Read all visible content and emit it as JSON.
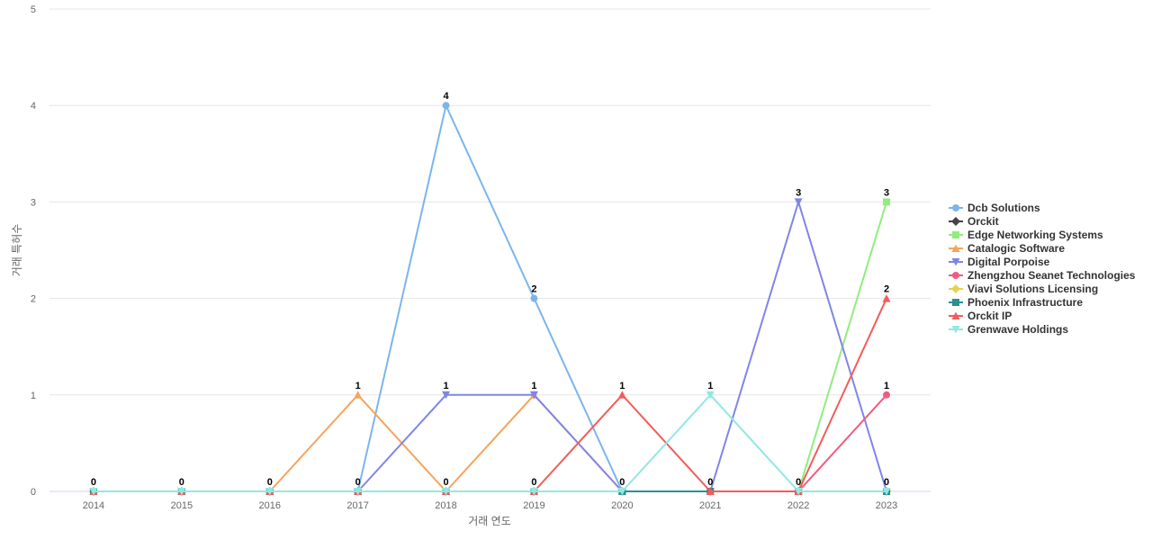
{
  "chart_data": {
    "type": "line",
    "title": "",
    "xlabel": "거래 연도",
    "ylabel": "거래 특허수",
    "ylim": [
      0,
      5
    ],
    "yticks": [
      0,
      1,
      2,
      3,
      4,
      5
    ],
    "grid": true,
    "legend": "right",
    "categories": [
      "2014",
      "2015",
      "2016",
      "2017",
      "2018",
      "2019",
      "2020",
      "2021",
      "2022",
      "2023"
    ],
    "series": [
      {
        "name": "Dcb Solutions",
        "color": "#7cb5ec",
        "marker": "circle",
        "values": [
          0,
          0,
          0,
          0,
          4,
          2,
          0,
          0,
          0,
          0
        ]
      },
      {
        "name": "Orckit",
        "color": "#434348",
        "marker": "diamond",
        "values": [
          0,
          0,
          0,
          0,
          0,
          0,
          0,
          0,
          0,
          0
        ]
      },
      {
        "name": "Edge Networking Systems",
        "color": "#90ed7d",
        "marker": "square",
        "values": [
          0,
          0,
          0,
          0,
          0,
          0,
          0,
          0,
          0,
          3
        ]
      },
      {
        "name": "Catalogic Software",
        "color": "#f7a35c",
        "marker": "triangle",
        "values": [
          0,
          0,
          0,
          1,
          0,
          1,
          0,
          0,
          0,
          0
        ]
      },
      {
        "name": "Digital Porpoise",
        "color": "#8085e9",
        "marker": "triangle-down",
        "values": [
          0,
          0,
          0,
          0,
          1,
          1,
          0,
          0,
          3,
          0
        ]
      },
      {
        "name": "Zhengzhou Seanet Technologies",
        "color": "#f15c80",
        "marker": "circle",
        "values": [
          0,
          0,
          0,
          0,
          0,
          0,
          0,
          0,
          0,
          1
        ]
      },
      {
        "name": "Viavi Solutions Licensing",
        "color": "#e4d354",
        "marker": "diamond",
        "values": [
          0,
          0,
          0,
          0,
          0,
          0,
          0,
          0,
          0,
          0
        ]
      },
      {
        "name": "Phoenix Infrastructure",
        "color": "#2b908f",
        "marker": "square",
        "values": [
          0,
          0,
          0,
          0,
          0,
          0,
          0,
          0,
          0,
          0
        ]
      },
      {
        "name": "Orckit IP",
        "color": "#f45b5b",
        "marker": "triangle",
        "values": [
          0,
          0,
          0,
          0,
          0,
          0,
          1,
          0,
          0,
          2
        ]
      },
      {
        "name": "Grenwave Holdings",
        "color": "#91e8e1",
        "marker": "triangle-down",
        "values": [
          0,
          0,
          0,
          0,
          0,
          0,
          0,
          1,
          0,
          0
        ]
      }
    ],
    "data_labels": [
      {
        "x": "2014",
        "y": 0,
        "text": "0"
      },
      {
        "x": "2015",
        "y": 0,
        "text": "0"
      },
      {
        "x": "2016",
        "y": 0,
        "text": "0"
      },
      {
        "x": "2017",
        "y": 0,
        "text": "0"
      },
      {
        "x": "2017",
        "y": 1,
        "text": "1"
      },
      {
        "x": "2018",
        "y": 4,
        "text": "4"
      },
      {
        "x": "2018",
        "y": 1,
        "text": "1"
      },
      {
        "x": "2018",
        "y": 0,
        "text": "0"
      },
      {
        "x": "2019",
        "y": 2,
        "text": "2"
      },
      {
        "x": "2019",
        "y": 1,
        "text": "1"
      },
      {
        "x": "2019",
        "y": 0,
        "text": "0"
      },
      {
        "x": "2020",
        "y": 1,
        "text": "1"
      },
      {
        "x": "2020",
        "y": 0,
        "text": "0"
      },
      {
        "x": "2021",
        "y": 1,
        "text": "1"
      },
      {
        "x": "2021",
        "y": 0,
        "text": "0"
      },
      {
        "x": "2022",
        "y": 3,
        "text": "3"
      },
      {
        "x": "2022",
        "y": 0,
        "text": "0"
      },
      {
        "x": "2023",
        "y": 3,
        "text": "3"
      },
      {
        "x": "2023",
        "y": 2,
        "text": "2"
      },
      {
        "x": "2023",
        "y": 1,
        "text": "1"
      },
      {
        "x": "2023",
        "y": 0,
        "text": "0"
      }
    ]
  }
}
